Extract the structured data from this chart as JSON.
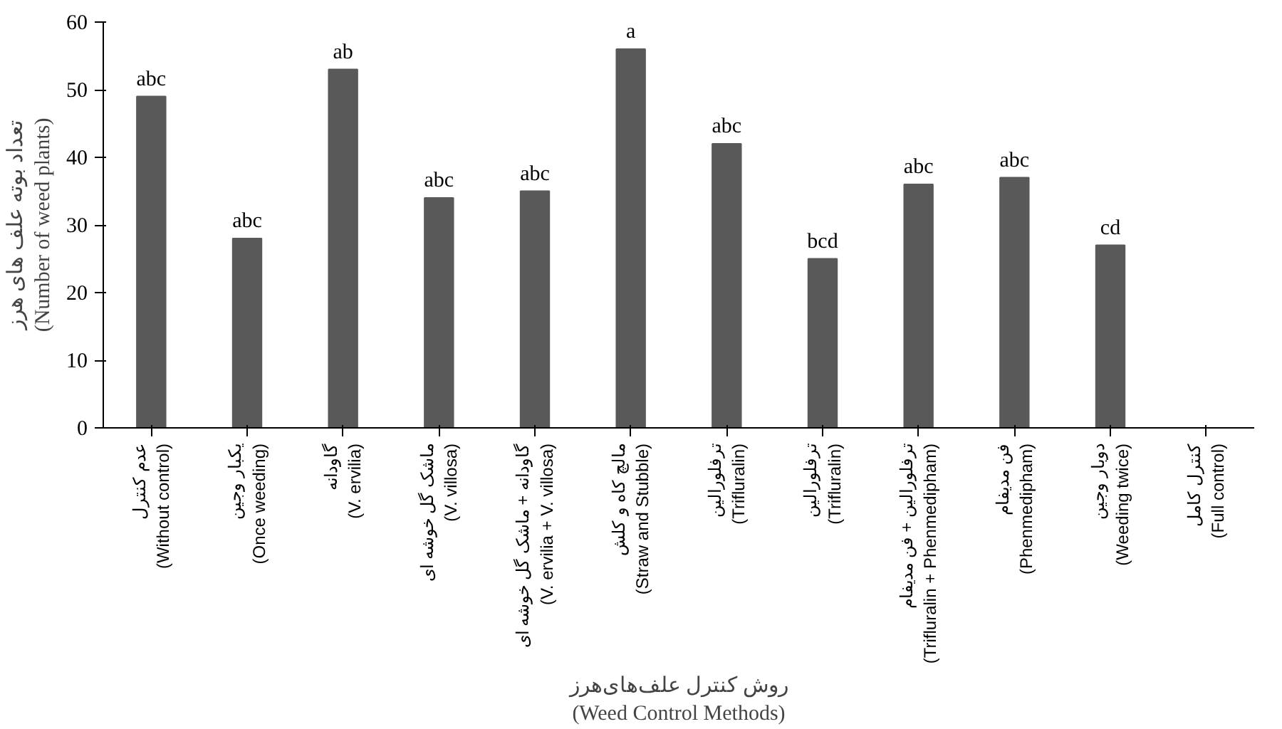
{
  "chart_data": {
    "type": "bar",
    "xlabel": "روش کنترل علف‌های‌هرز\n(Weed Control Methods)",
    "ylabel": "تعداد بوته علف های هرز\n(Number of weed plants)",
    "categories": [
      "عدم کنترل\n(Without control)",
      "یکبار وجین\n(Once weeding)",
      "گاودانه\n(V. ervilia)",
      "ماشک گل خوشه ای\n(V. villosa)",
      "گاودانه + ماشک گل خوشه ای\n(V. ervilia + V. villosa)",
      "مالچ کاه و کلش\n(Straw and Stubble)",
      "ترفلورالین\n(Trifluralin)",
      "ترفلورالین\n(Trifluralin)",
      "ترفلورالین + فن مدیفام\n(Trifluralin + Phenmedipham)",
      "فن مدیفام\n(Phenmedipham)",
      "دوبار وجین\n(Weeding twice)",
      "کنترل کامل\n(Full control)"
    ],
    "values": [
      49,
      28,
      53,
      34,
      35,
      56,
      42,
      25,
      36,
      37,
      27,
      null
    ],
    "value_labels": [
      "abc",
      "abc",
      "ab",
      "abc",
      "abc",
      "a",
      "abc",
      "bcd",
      "abc",
      "abc",
      "cd",
      null
    ],
    "color": "#595959",
    "ylim": [
      0,
      60
    ],
    "yticks": [
      0,
      10,
      20,
      30,
      40,
      50,
      60
    ],
    "grid": false
  }
}
